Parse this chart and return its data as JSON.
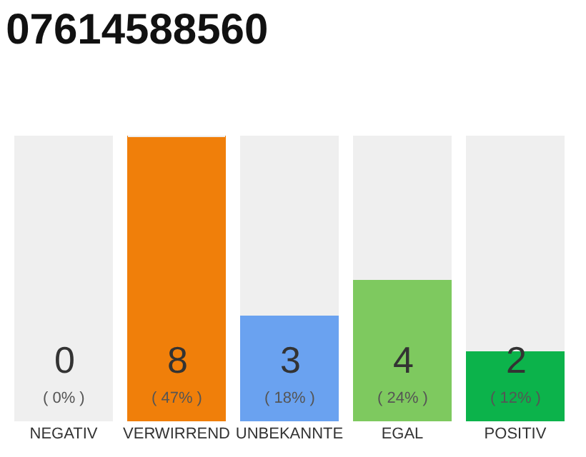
{
  "chart_data": {
    "type": "bar",
    "title": "07614588560",
    "stacked": true,
    "categories": [
      "NEGATIV",
      "VERWIRREND",
      "UNBEKANNTE",
      "EGAL",
      "POSITIV"
    ],
    "series": [
      {
        "values": [
          0,
          8,
          3,
          4,
          2
        ],
        "colors": [
          "#555555",
          "#f07f0a",
          "#6aa2f0",
          "#7ec95f",
          "#0cb34b"
        ],
        "value_labels": [
          "0\n( 0% )",
          "8\n( 47% )",
          "3\n( 18% )",
          "4\n( 24% )",
          "2\n( 12% )"
        ]
      },
      {
        "values": [
          8,
          0,
          5,
          4,
          6
        ],
        "color": "#efefef"
      }
    ]
  }
}
